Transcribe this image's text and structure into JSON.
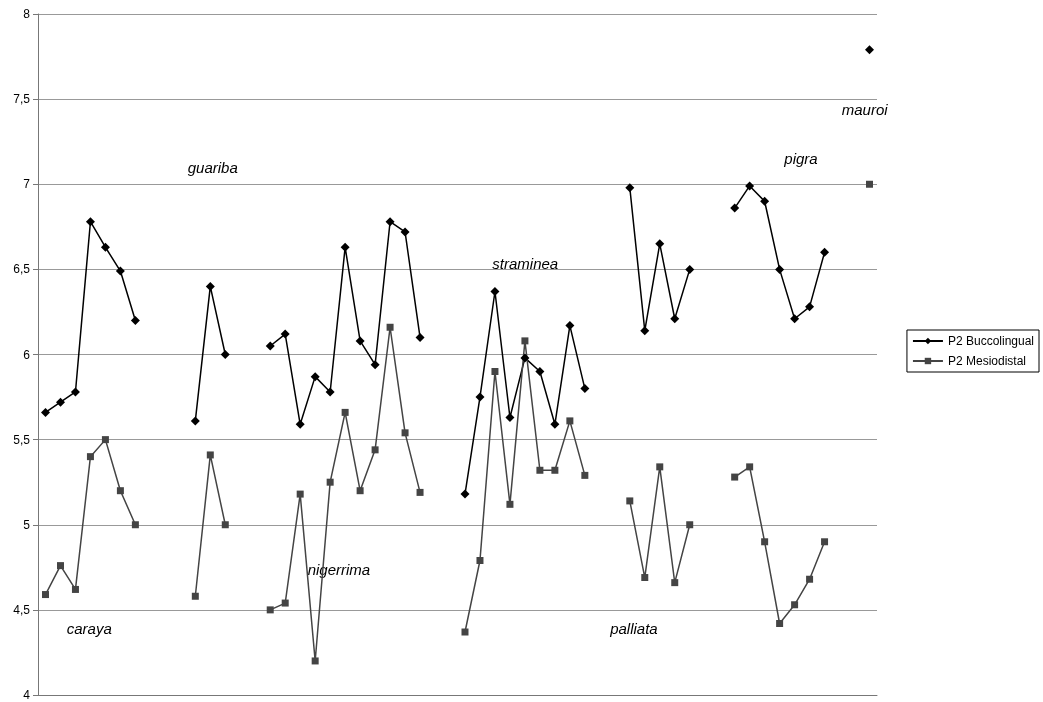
{
  "chart_data": {
    "type": "line",
    "categories": [
      null,
      null,
      null,
      null,
      null,
      null,
      null,
      null,
      null,
      null,
      null,
      null,
      null,
      null,
      null,
      null,
      null,
      null,
      null,
      null,
      null,
      null,
      null,
      null,
      null,
      null,
      null,
      null,
      null,
      null,
      null,
      null,
      null,
      null,
      null,
      null,
      null,
      null,
      null,
      null,
      null,
      null,
      null,
      null,
      null,
      null,
      null,
      null,
      null,
      null,
      null,
      null,
      null,
      null,
      null,
      null
    ],
    "series": [
      {
        "name": "P2 Buccolingual",
        "color": "#000000",
        "marker": "diamond",
        "values": [
          5.66,
          5.72,
          5.78,
          6.78,
          6.63,
          6.49,
          6.2,
          null,
          null,
          null,
          5.61,
          6.4,
          6.0,
          null,
          null,
          6.05,
          6.12,
          5.59,
          5.87,
          5.78,
          6.63,
          6.08,
          5.94,
          6.78,
          6.72,
          6.1,
          null,
          null,
          5.18,
          5.75,
          6.37,
          5.63,
          5.98,
          5.9,
          5.59,
          6.17,
          5.8,
          null,
          null,
          6.98,
          6.14,
          6.65,
          6.21,
          6.5,
          null,
          null,
          6.86,
          6.99,
          6.9,
          6.5,
          6.21,
          6.28,
          6.6,
          null,
          null,
          7.79
        ]
      },
      {
        "name": "P2 Mesiodistal",
        "color": "#444444",
        "marker": "square",
        "values": [
          4.59,
          4.76,
          4.62,
          5.4,
          5.5,
          5.2,
          5.0,
          null,
          null,
          null,
          4.58,
          5.41,
          5.0,
          null,
          null,
          4.5,
          4.54,
          5.18,
          4.2,
          5.25,
          5.66,
          5.2,
          5.44,
          6.16,
          5.54,
          5.19,
          null,
          null,
          4.37,
          4.79,
          5.9,
          5.12,
          6.08,
          5.32,
          5.32,
          5.61,
          5.29,
          null,
          null,
          5.14,
          4.69,
          5.34,
          4.66,
          5.0,
          null,
          null,
          5.28,
          5.34,
          4.9,
          4.42,
          4.53,
          4.68,
          4.9,
          null,
          null,
          7.0
        ]
      }
    ],
    "ylim": [
      4,
      8
    ],
    "yticks": [
      4,
      {
        "value": 4.5,
        "label": "4,5"
      },
      5,
      {
        "value": 5.5,
        "label": "5,5"
      },
      6,
      {
        "value": 6.5,
        "label": "6,5"
      },
      7,
      {
        "value": 7.5,
        "label": "7,5"
      },
      8
    ],
    "grid": "y",
    "legend": "right",
    "tick_labels": "y",
    "annotations": [
      "guariba",
      "mauroi",
      "pigra",
      "straminea",
      "nigerrima",
      "caraya",
      "palliata"
    ]
  }
}
